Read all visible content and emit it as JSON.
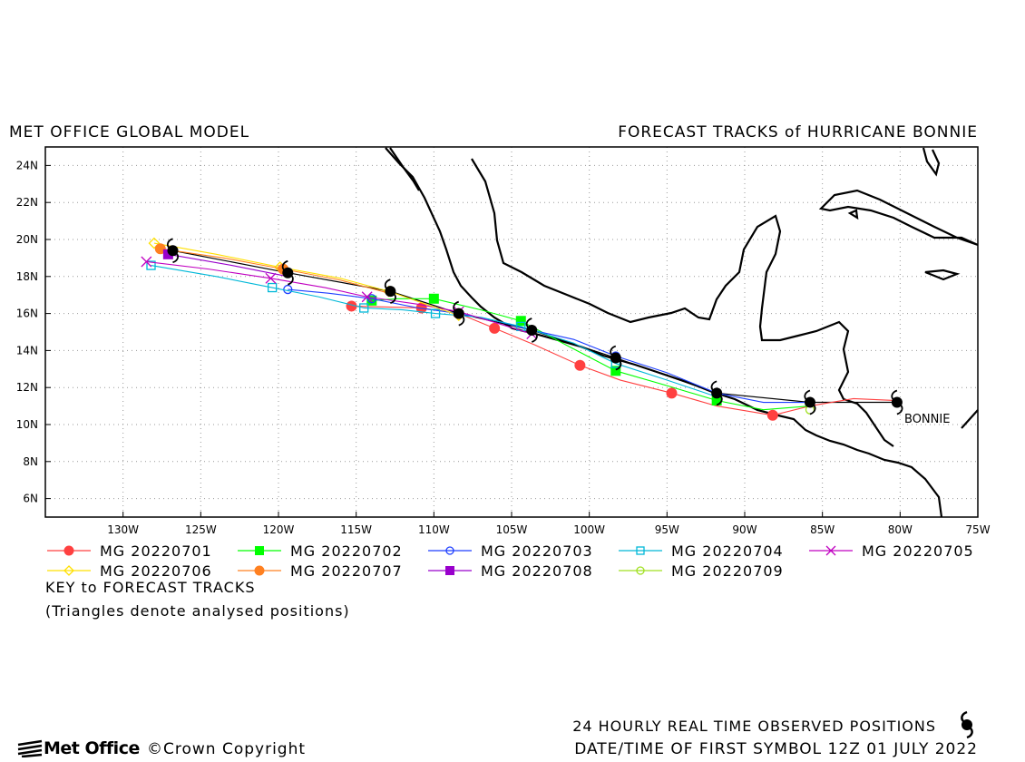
{
  "header": {
    "left_title": "MET OFFICE GLOBAL MODEL",
    "right_title": "FORECAST TRACKS of HURRICANE BONNIE"
  },
  "map": {
    "lon_range": [
      -135,
      -75
    ],
    "lat_range": [
      5,
      25
    ],
    "lat_ticks": [
      "6N",
      "8N",
      "10N",
      "12N",
      "14N",
      "16N",
      "18N",
      "20N",
      "22N",
      "24N"
    ],
    "lon_ticks": [
      "130W",
      "125W",
      "120W",
      "115W",
      "110W",
      "105W",
      "100W",
      "95W",
      "90W",
      "85W",
      "80W",
      "75W"
    ],
    "storm_label": "BONNIE",
    "grid": true
  },
  "chart_data": {
    "type": "scatter",
    "title": "FORECAST TRACKS of HURRICANE BONNIE",
    "xlabel": "",
    "ylabel": "",
    "xlim": [
      -135,
      -75
    ],
    "ylim": [
      5,
      25
    ],
    "observed_track": [
      [
        -80.2,
        11.2
      ],
      [
        -85.8,
        11.2
      ],
      [
        -91.8,
        11.7
      ],
      [
        -98.3,
        13.6
      ],
      [
        -103.7,
        15.1
      ],
      [
        -108.4,
        16.0
      ],
      [
        -112.8,
        17.2
      ],
      [
        -119.4,
        18.2
      ],
      [
        -126.8,
        19.4
      ]
    ],
    "series": [
      {
        "name": "MG 20220701",
        "color": "#ff4040",
        "marker": "circle-filled",
        "points": [
          [
            -80.4,
            11.3
          ],
          [
            -83.0,
            11.4
          ],
          [
            -85.8,
            11.0
          ],
          [
            -88.2,
            10.5
          ],
          [
            -91.8,
            11.0
          ],
          [
            -94.7,
            11.7
          ],
          [
            -98.0,
            12.4
          ],
          [
            -100.6,
            13.2
          ],
          [
            -103.5,
            14.3
          ],
          [
            -106.1,
            15.2
          ],
          [
            -108.4,
            16.0
          ],
          [
            -110.8,
            16.3
          ],
          [
            -115.3,
            16.4
          ]
        ],
        "symbols": [
          [
            -88.2,
            10.5
          ],
          [
            -94.7,
            11.7
          ],
          [
            -100.6,
            13.2
          ],
          [
            -106.1,
            15.2
          ],
          [
            -110.8,
            16.3
          ],
          [
            -115.3,
            16.4
          ]
        ]
      },
      {
        "name": "MG 20220702",
        "color": "#00ff00",
        "marker": "square-filled",
        "points": [
          [
            -85.8,
            11.0
          ],
          [
            -88.8,
            10.8
          ],
          [
            -91.8,
            11.3
          ],
          [
            -95.0,
            12.1
          ],
          [
            -98.3,
            12.9
          ],
          [
            -101.5,
            14.3
          ],
          [
            -104.4,
            15.6
          ],
          [
            -107.0,
            16.2
          ],
          [
            -110.0,
            16.8
          ],
          [
            -112.3,
            16.8
          ],
          [
            -114.0,
            16.7
          ]
        ],
        "symbols": [
          [
            -91.8,
            11.3
          ],
          [
            -98.3,
            12.9
          ],
          [
            -104.4,
            15.6
          ],
          [
            -110.0,
            16.8
          ],
          [
            -114.0,
            16.7
          ]
        ]
      },
      {
        "name": "MG 20220703",
        "color": "#1e3fff",
        "marker": "circle-open",
        "points": [
          [
            -85.8,
            11.2
          ],
          [
            -88.8,
            11.2
          ],
          [
            -91.8,
            11.7
          ],
          [
            -95.0,
            12.8
          ],
          [
            -98.3,
            13.7
          ],
          [
            -101.0,
            14.6
          ],
          [
            -103.7,
            15.1
          ],
          [
            -106.0,
            15.6
          ],
          [
            -108.4,
            16.0
          ],
          [
            -111.0,
            16.3
          ],
          [
            -114.0,
            16.8
          ],
          [
            -116.8,
            17.1
          ],
          [
            -119.4,
            17.3
          ]
        ],
        "symbols": [
          [
            -98.3,
            13.7
          ],
          [
            -103.7,
            15.1
          ],
          [
            -108.4,
            16.0
          ],
          [
            -114.0,
            16.8
          ],
          [
            -119.4,
            17.3
          ]
        ]
      },
      {
        "name": "MG 20220704",
        "color": "#00b8d8",
        "marker": "square-open",
        "points": [
          [
            -91.8,
            11.5
          ],
          [
            -95.0,
            12.4
          ],
          [
            -98.3,
            13.3
          ],
          [
            -101.0,
            14.4
          ],
          [
            -104.4,
            15.3
          ],
          [
            -107.0,
            15.8
          ],
          [
            -109.9,
            16.0
          ],
          [
            -112.0,
            16.2
          ],
          [
            -114.5,
            16.3
          ],
          [
            -117.4,
            16.9
          ],
          [
            -120.4,
            17.4
          ],
          [
            -124.0,
            18.0
          ],
          [
            -128.2,
            18.6
          ]
        ],
        "symbols": [
          [
            -98.3,
            13.3
          ],
          [
            -104.4,
            15.3
          ],
          [
            -109.9,
            16.0
          ],
          [
            -114.5,
            16.3
          ],
          [
            -120.4,
            17.4
          ],
          [
            -128.2,
            18.6
          ]
        ]
      },
      {
        "name": "MG 20220705",
        "color": "#c000c0",
        "marker": "cross",
        "points": [
          [
            -103.7,
            14.9
          ],
          [
            -106.0,
            15.5
          ],
          [
            -108.4,
            16.1
          ],
          [
            -111.0,
            16.5
          ],
          [
            -114.3,
            16.9
          ],
          [
            -117.0,
            17.4
          ],
          [
            -120.5,
            17.9
          ],
          [
            -124.5,
            18.4
          ],
          [
            -128.5,
            18.8
          ]
        ],
        "symbols": [
          [
            -103.7,
            14.9
          ],
          [
            -108.4,
            16.1
          ],
          [
            -114.3,
            16.9
          ],
          [
            -120.5,
            17.9
          ],
          [
            -128.5,
            18.8
          ]
        ]
      },
      {
        "name": "MG 20220706",
        "color": "#ffe000",
        "marker": "diamond-open",
        "points": [
          [
            -108.4,
            15.9
          ],
          [
            -110.5,
            16.5
          ],
          [
            -112.9,
            17.2
          ],
          [
            -116.0,
            17.9
          ],
          [
            -119.9,
            18.5
          ],
          [
            -124.0,
            19.2
          ],
          [
            -128.0,
            19.8
          ]
        ],
        "symbols": [
          [
            -108.4,
            15.9
          ],
          [
            -112.9,
            17.2
          ],
          [
            -119.9,
            18.5
          ],
          [
            -128.0,
            19.8
          ]
        ]
      },
      {
        "name": "MG 20220707",
        "color": "#ff8020",
        "marker": "circle-filled",
        "points": [
          [
            -112.9,
            17.1
          ],
          [
            -116.0,
            17.8
          ],
          [
            -119.7,
            18.4
          ],
          [
            -123.5,
            19.0
          ],
          [
            -127.6,
            19.5
          ]
        ],
        "symbols": [
          [
            -119.7,
            18.4
          ],
          [
            -127.6,
            19.5
          ]
        ]
      },
      {
        "name": "MG 20220708",
        "color": "#9900cc",
        "marker": "square-filled",
        "points": [
          [
            -119.4,
            18.0
          ],
          [
            -123.0,
            18.6
          ],
          [
            -127.1,
            19.2
          ]
        ],
        "symbols": [
          [
            -127.1,
            19.2
          ]
        ]
      },
      {
        "name": "MG 20220709",
        "color": "#a0e020",
        "marker": "circle-open",
        "points": [
          [
            -126.8,
            19.3
          ],
          [
            -127.0,
            19.4
          ]
        ],
        "symbols": [
          [
            -85.8,
            10.8
          ]
        ]
      }
    ]
  },
  "legend_rows": [
    [
      "MG 20220701",
      "MG 20220702",
      "MG 20220703",
      "MG 20220704",
      "MG 20220705"
    ],
    [
      "MG 20220706",
      "MG 20220707",
      "MG 20220708",
      "MG 20220709"
    ]
  ],
  "footer": {
    "key_title": "KEY to FORECAST TRACKS",
    "key_note": "(Triangles denote analysed positions)",
    "observed_text": "24 HOURLY REAL TIME OBSERVED POSITIONS",
    "date_text": "DATE/TIME OF FIRST SYMBOL 12Z 01 JULY 2022",
    "logo_text": "Met Office",
    "copyright_text": "©Crown Copyright"
  }
}
